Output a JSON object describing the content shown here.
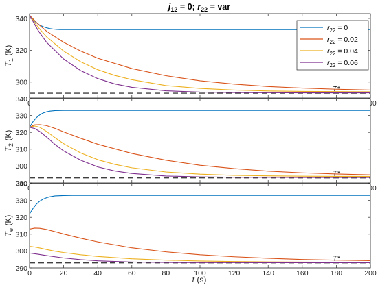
{
  "chart_data": {
    "type": "line",
    "title": {
      "j_symbol": "j",
      "j_sub": "12",
      "j_value": " = 0; ",
      "r_symbol": "r",
      "r_sub": "22",
      "r_value": " = var"
    },
    "xlabel": {
      "symbol": "t",
      "unit": " (s)"
    },
    "xlim": [
      0,
      200
    ],
    "xticks": [
      0,
      20,
      40,
      60,
      80,
      100,
      120,
      140,
      160,
      180,
      200
    ],
    "legend": {
      "placement": "top-right",
      "symbol": "r",
      "sub": "22",
      "entries": [
        " = 0",
        " = 0.02",
        " = 0.04",
        " = 0.06"
      ]
    },
    "colors": [
      "#0072BD",
      "#D95319",
      "#EDB120",
      "#7E2F8E"
    ],
    "reference": {
      "label": "T*",
      "value": 293,
      "style": "dashed",
      "color": "#404040"
    },
    "panels": [
      {
        "ylabel": {
          "symbol": "T",
          "sub": "1",
          "unit": " (K)"
        },
        "ylim": [
          290,
          343
        ],
        "yticks": [
          300,
          320,
          340
        ],
        "series": [
          {
            "x": [
              0,
              2,
              4,
              6,
              8,
              10,
              12,
              14,
              16,
              18,
              20,
              25,
              30,
              40,
              60,
              80,
              100,
              120,
              140,
              160,
              180,
              200
            ],
            "y": [
              342,
              339.5,
              337.3,
              335.8,
              334.8,
              334.1,
              333.6,
              333.3,
              333.1,
              333,
              333,
              333,
              333,
              333,
              333,
              333,
              333,
              333,
              333,
              333,
              333,
              333
            ]
          },
          {
            "x": [
              0,
              5,
              10,
              20,
              30,
              40,
              60,
              80,
              100,
              120,
              140,
              160,
              180,
              200
            ],
            "y": [
              342,
              336.5,
              332,
              325,
              319.5,
              315,
              308.5,
              304,
              300.8,
              298.7,
              297.2,
              296.2,
              295.5,
              295
            ]
          },
          {
            "x": [
              0,
              5,
              10,
              20,
              30,
              40,
              50,
              60,
              80,
              100,
              120,
              140,
              160,
              180,
              200
            ],
            "y": [
              342,
              334.5,
              328.5,
              319.5,
              312.8,
              307.8,
              304.2,
              301.5,
              297.8,
              296,
              295,
              294.4,
              294.1,
              294,
              293.9
            ]
          },
          {
            "x": [
              0,
              5,
              10,
              20,
              30,
              40,
              50,
              60,
              80,
              100,
              120,
              140,
              160,
              180,
              200
            ],
            "y": [
              342,
              332.5,
              325,
              314.5,
              307.2,
              302.2,
              298.8,
              296.7,
              294.5,
              293.7,
              293.4,
              293.3,
              293.2,
              293.2,
              293.2
            ]
          }
        ]
      },
      {
        "ylabel": {
          "symbol": "T",
          "sub": "2",
          "unit": " (K)"
        },
        "ylim": [
          290,
          340
        ],
        "yticks": [
          290,
          300,
          310,
          320,
          330,
          340
        ],
        "series": [
          {
            "x": [
              0,
              2,
              4,
              6,
              8,
              10,
              12,
              15,
              20,
              25,
              30,
              40,
              60,
              100,
              140,
              200
            ],
            "y": [
              323,
              326.3,
              328.7,
              330.4,
              331.5,
              332.2,
              332.6,
              332.9,
              333,
              333,
              333,
              333,
              333,
              333,
              333,
              333
            ]
          },
          {
            "x": [
              0,
              3,
              6,
              10,
              15,
              20,
              30,
              40,
              60,
              80,
              100,
              120,
              140,
              160,
              180,
              200
            ],
            "y": [
              323,
              324.5,
              324.6,
              324,
              322.3,
              320.3,
              316.5,
              313,
              307.5,
              303.5,
              300.5,
              298.5,
              297,
              296,
              295.3,
              294.8
            ]
          },
          {
            "x": [
              0,
              3,
              6,
              10,
              15,
              20,
              30,
              40,
              50,
              60,
              80,
              100,
              120,
              140,
              160,
              180,
              200
            ],
            "y": [
              323,
              323.8,
              323,
              320.5,
              316.8,
              313.3,
              307.8,
              303.8,
              301,
              299,
              296.5,
              295.2,
              294.5,
              294.2,
              294,
              293.9,
              293.9
            ]
          },
          {
            "x": [
              0,
              3,
              6,
              10,
              15,
              20,
              30,
              40,
              50,
              60,
              80,
              100,
              120,
              140,
              160,
              180,
              200
            ],
            "y": [
              323,
              322.3,
              320.5,
              317.2,
              312.8,
              309,
              303.5,
              299.5,
              297.1,
              295.6,
              294.1,
              293.6,
              293.4,
              293.3,
              293.2,
              293.2,
              293.2
            ]
          }
        ]
      },
      {
        "ylabel": {
          "symbol": "T",
          "sub": "e",
          "unit": " (K)"
        },
        "ylim": [
          290,
          340
        ],
        "yticks": [
          290,
          300,
          310,
          320,
          330,
          340
        ],
        "series": [
          {
            "x": [
              0,
              2,
              4,
              6,
              8,
              10,
              12,
              15,
              20,
              25,
              30,
              40,
              60,
              100,
              140,
              200
            ],
            "y": [
              322,
              325.2,
              327.8,
              329.6,
              330.8,
              331.6,
              332.2,
              332.7,
              332.9,
              333,
              333,
              333,
              333,
              333,
              333,
              333
            ]
          },
          {
            "x": [
              0,
              3,
              6,
              10,
              15,
              20,
              30,
              40,
              60,
              80,
              100,
              120,
              140,
              160,
              180,
              200
            ],
            "y": [
              313,
              313.6,
              313.5,
              312.8,
              311.5,
              310.1,
              307.6,
              305.4,
              301.9,
              299.5,
              297.8,
              296.6,
              295.7,
              295,
              294.6,
              294.3
            ]
          },
          {
            "x": [
              0,
              3,
              6,
              10,
              15,
              20,
              30,
              40,
              60,
              80,
              100,
              120,
              140,
              160,
              180,
              200
            ],
            "y": [
              302.8,
              302.4,
              301.8,
              300.9,
              299.9,
              299.1,
              297.8,
              296.8,
              295.4,
              294.6,
              294.1,
              293.8,
              293.6,
              293.5,
              293.4,
              293.4
            ]
          },
          {
            "x": [
              0,
              5,
              10,
              20,
              30,
              40,
              60,
              80,
              100,
              120,
              160,
              200
            ],
            "y": [
              298.8,
              298.1,
              297.3,
              295.9,
              294.9,
              294.2,
              293.5,
              293.2,
              293.1,
              293.1,
              293.05,
              293.05
            ]
          }
        ]
      }
    ]
  }
}
